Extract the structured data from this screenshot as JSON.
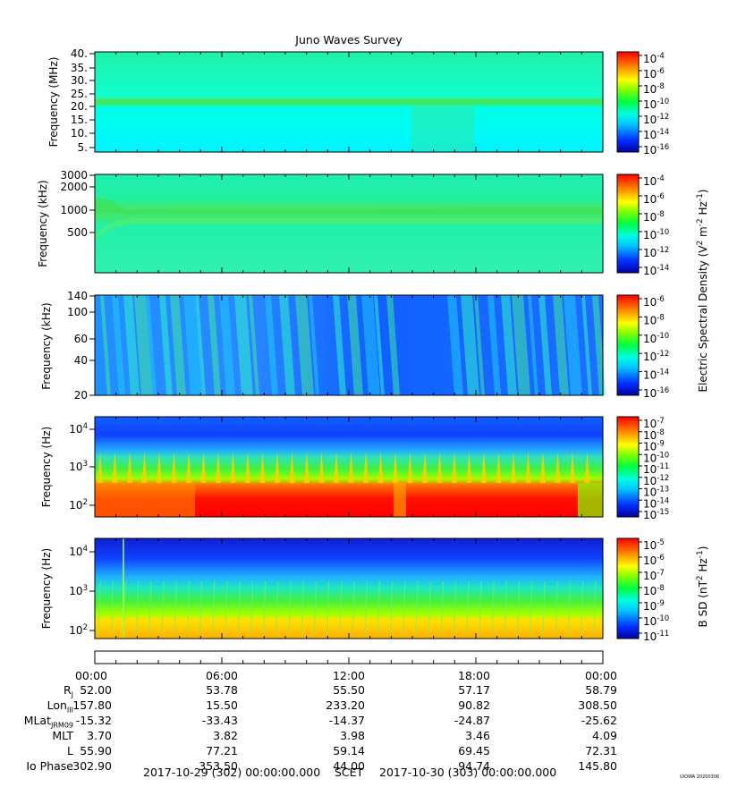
{
  "chart_data": {
    "type": "heatmap",
    "title": "Juno Waves Survey",
    "x_ticks": [
      "00:00",
      "06:00",
      "12:00",
      "18:00",
      "00:00"
    ],
    "panels": [
      {
        "ylabel": "Frequency (MHz)",
        "yticks": [
          "40.",
          "35.",
          "30.",
          "25.",
          "20.",
          "15.",
          "10.",
          "5."
        ],
        "colorbar_ticks": [
          "10^-4",
          "10^-6",
          "10^-8",
          "10^-10",
          "10^-12",
          "10^-14",
          "10^-16"
        ],
        "colorbar_label": ""
      },
      {
        "ylabel": "Frequency (kHz)",
        "yticks": [
          "3000",
          "2000",
          "1000",
          "500"
        ],
        "colorbar_ticks": [
          "10^-4",
          "10^-6",
          "10^-8",
          "10^-10",
          "10^-12",
          "10^-14"
        ],
        "colorbar_label": "Electric Spectral Density (V^2 m^-2 Hz^-1)"
      },
      {
        "ylabel": "Frequency (kHz)",
        "yticks": [
          "140",
          "100",
          "60",
          "40",
          "20"
        ],
        "colorbar_ticks": [
          "10^-6",
          "10^-8",
          "10^-10",
          "10^-12",
          "10^-14",
          "10^-16"
        ],
        "colorbar_label": ""
      },
      {
        "ylabel": "Frequency (Hz)",
        "yticks": [
          "10^4",
          "10^3",
          "10^2"
        ],
        "colorbar_ticks": [
          "10^-7",
          "10^-8",
          "10^-9",
          "10^-10",
          "10^-11",
          "10^-12",
          "10^-13",
          "10^-14",
          "10^-15"
        ],
        "colorbar_label": ""
      },
      {
        "ylabel": "Frequency (Hz)",
        "yticks": [
          "10^4",
          "10^3",
          "10^2"
        ],
        "colorbar_ticks": [
          "10^-5",
          "10^-6",
          "10^-7",
          "10^-8",
          "10^-9",
          "10^-10",
          "10^-11"
        ],
        "colorbar_label": "B SD (nT^2 Hz^-1)"
      }
    ]
  },
  "ephemeris": {
    "times": [
      "00:00",
      "06:00",
      "12:00",
      "18:00",
      "00:00"
    ],
    "rows": [
      {
        "name": "R",
        "sub": "J",
        "values": [
          "52.00",
          "53.78",
          "55.50",
          "57.17",
          "58.79"
        ]
      },
      {
        "name": "Lon",
        "sub": "III",
        "values": [
          "157.80",
          "15.50",
          "233.20",
          "90.82",
          "308.50"
        ]
      },
      {
        "name": "MLat",
        "sub": "JRM09",
        "values": [
          "-15.32",
          "-33.43",
          "-14.37",
          "-24.87",
          "-25.62"
        ]
      },
      {
        "name": "MLT",
        "sub": "",
        "values": [
          "3.70",
          "3.82",
          "3.98",
          "3.46",
          "4.09"
        ]
      },
      {
        "name": "L",
        "sub": "",
        "values": [
          "55.90",
          "77.21",
          "59.14",
          "69.45",
          "72.31"
        ]
      },
      {
        "name": "Io Phase",
        "sub": "",
        "values": [
          "302.90",
          "353.50",
          "44.00",
          "94.74",
          "145.80"
        ]
      }
    ]
  },
  "footer": {
    "start": "2017-10-29 (302) 00:00:00.000",
    "scet": "SCET",
    "end": "2017-10-30 (303) 00:00:00.000",
    "stamp": "UIOWA 20200306"
  }
}
